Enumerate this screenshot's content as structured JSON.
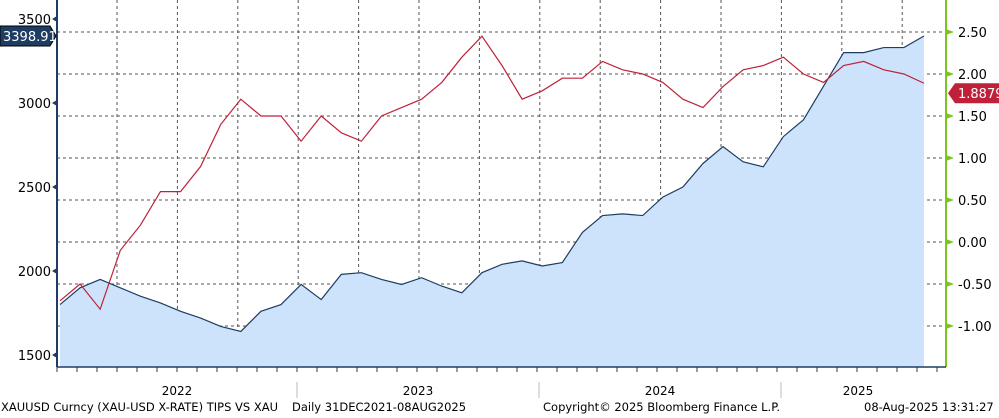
{
  "chart_data": {
    "type": "line",
    "title": "XAUUSD Curncy (XAU-USD X-RATE) TIPS VS XAU",
    "period": "Daily 31DEC2021-08AUG2025",
    "x_ticks": [
      "2022",
      "2023",
      "2024",
      "2025"
    ],
    "x": [
      "2022-01",
      "2022-02",
      "2022-03",
      "2022-04",
      "2022-05",
      "2022-06",
      "2022-07",
      "2022-08",
      "2022-09",
      "2022-10",
      "2022-11",
      "2022-12",
      "2023-01",
      "2023-02",
      "2023-03",
      "2023-04",
      "2023-05",
      "2023-06",
      "2023-07",
      "2023-08",
      "2023-09",
      "2023-10",
      "2023-11",
      "2023-12",
      "2024-01",
      "2024-02",
      "2024-03",
      "2024-04",
      "2024-05",
      "2024-06",
      "2024-07",
      "2024-08",
      "2024-09",
      "2024-10",
      "2024-11",
      "2024-12",
      "2025-01",
      "2025-02",
      "2025-03",
      "2025-04",
      "2025-05",
      "2025-06",
      "2025-07",
      "2025-08"
    ],
    "left_axis": {
      "ticks": [
        "1500",
        "2000",
        "2500",
        "3000",
        "3500"
      ],
      "range": [
        1450,
        3600
      ]
    },
    "right_axis": {
      "ticks": [
        "-1.00",
        "-0.50",
        "0.00",
        "0.50",
        "1.00",
        "1.50",
        "2.00",
        "2.50"
      ],
      "range": [
        -1.3,
        2.8
      ]
    },
    "series": [
      {
        "name": "XAUUSD",
        "axis": "left",
        "color": "#1f3d63",
        "fill": "#cce3fb",
        "last_label": "3398.91",
        "values": [
          1800,
          1900,
          1950,
          1900,
          1850,
          1810,
          1760,
          1720,
          1670,
          1640,
          1760,
          1800,
          1920,
          1830,
          1980,
          1990,
          1950,
          1920,
          1960,
          1910,
          1870,
          1990,
          2040,
          2060,
          2030,
          2050,
          2230,
          2330,
          2340,
          2330,
          2440,
          2500,
          2640,
          2740,
          2650,
          2620,
          2800,
          2900,
          3100,
          3300,
          3300,
          3330,
          3330,
          3399
        ]
      },
      {
        "name": "TIPS",
        "axis": "right",
        "color": "#c0213a",
        "last_label": "1.8879",
        "values": [
          -0.7,
          -0.5,
          -0.8,
          -0.1,
          0.2,
          0.6,
          0.6,
          0.9,
          1.4,
          1.7,
          1.5,
          1.5,
          1.2,
          1.5,
          1.3,
          1.2,
          1.5,
          1.6,
          1.7,
          1.9,
          2.2,
          2.45,
          2.1,
          1.7,
          1.8,
          1.95,
          1.95,
          2.15,
          2.05,
          2.0,
          1.9,
          1.7,
          1.6,
          1.85,
          2.05,
          2.1,
          2.2,
          2.0,
          1.9,
          2.1,
          2.15,
          2.05,
          2.0,
          1.89
        ]
      }
    ]
  },
  "footer": {
    "title": "XAUUSD Curncy (XAU-USD X-RATE) TIPS VS XAU",
    "period": "Daily 31DEC2021-08AUG2025",
    "copyright": "Copyright© 2025 Bloomberg Finance L.P.",
    "timestamp": "08-Aug-2025 13:31:27"
  }
}
